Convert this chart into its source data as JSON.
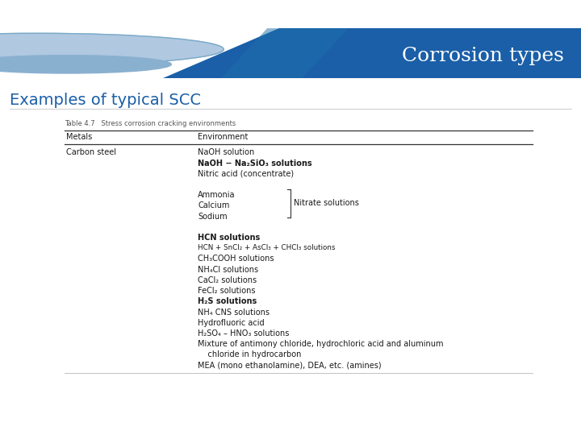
{
  "title": "Corrosion types",
  "subtitle": "Examples of typical SCC",
  "table_title": "Table 4.7   Stress corrosion cracking environments",
  "col1_header": "Metals",
  "col2_header": "Environment",
  "col1_data": "Carbon steel",
  "environments": [
    "NaOH solution",
    "NaOH − Na₂SiO₃ solutions",
    "Nitric acid (concentrate)",
    "",
    "Ammonia",
    "Calcium",
    "Sodium",
    "",
    "HCN solutions",
    "HCN + SnCl₂ + AsCl₃ + CHCl₃ solutions",
    "CH₃COOH solutions",
    "NH₄Cl solutions",
    "CaCl₂ solutions",
    "FeCl₂ solutions",
    "H₂S solutions",
    "NH₄ CNS solutions",
    "Hydrofluoric acid",
    "H₂SO₄ – HNO₃ solutions",
    "Mixture of antimony chloride, hydrochloric acid and aluminum",
    "    chloride in hydrocarbon",
    "MEA (mono ethanolamine), DEA, etc. (amines)"
  ],
  "bold_lines": [
    1,
    8,
    14
  ],
  "nitrate_label": "Nitrate solutions",
  "top_strip_color": "#0d2145",
  "header_light_blue": "#2a8ac4",
  "header_dark_blue": "#1a5fa8",
  "header_mid_blue": "#1e6faa",
  "subtitle_color": "#1a5fa8",
  "footer_color": "#c8c8c8",
  "text_color": "#1a1a1a"
}
